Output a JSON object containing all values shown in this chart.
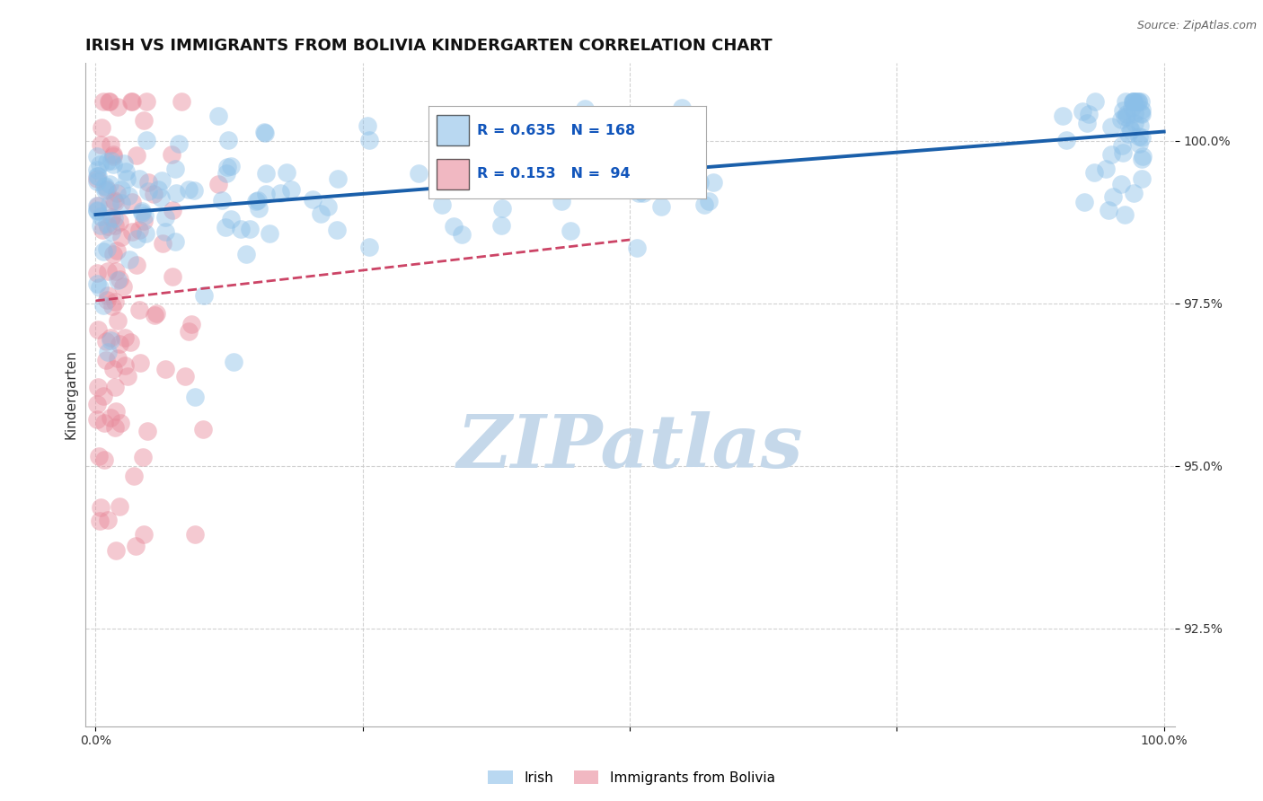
{
  "title": "IRISH VS IMMIGRANTS FROM BOLIVIA KINDERGARTEN CORRELATION CHART",
  "source_text": "Source: ZipAtlas.com",
  "ylabel": "Kindergarten",
  "watermark": "ZIPatlas",
  "legend_irish": "Irish",
  "legend_bolivia": "Immigrants from Bolivia",
  "R_irish": 0.635,
  "N_irish": 168,
  "R_bolivia": 0.153,
  "N_bolivia": 94,
  "xlim": [
    -1.0,
    101.0
  ],
  "ylim": [
    91.0,
    101.2
  ],
  "yticks": [
    92.5,
    95.0,
    97.5,
    100.0
  ],
  "xticks": [
    0.0,
    25.0,
    50.0,
    75.0,
    100.0
  ],
  "xtick_labels": [
    "0.0%",
    "",
    "",
    "",
    "100.0%"
  ],
  "ytick_labels": [
    "92.5%",
    "95.0%",
    "97.5%",
    "100.0%"
  ],
  "color_irish": "#8bbfe8",
  "color_bolivia": "#e8899a",
  "trendline_irish_color": "#1a5faa",
  "trendline_bolivia_color": "#cc4466",
  "background_color": "#ffffff",
  "title_fontsize": 13,
  "axis_label_fontsize": 11,
  "tick_fontsize": 10,
  "watermark_color": "#c5d8ea",
  "watermark_fontsize": 60,
  "irish_seed": 12,
  "bolivia_seed": 7,
  "irish_x_mean": 35,
  "irish_x_std": 30,
  "bolivia_x_scale": 3.0
}
